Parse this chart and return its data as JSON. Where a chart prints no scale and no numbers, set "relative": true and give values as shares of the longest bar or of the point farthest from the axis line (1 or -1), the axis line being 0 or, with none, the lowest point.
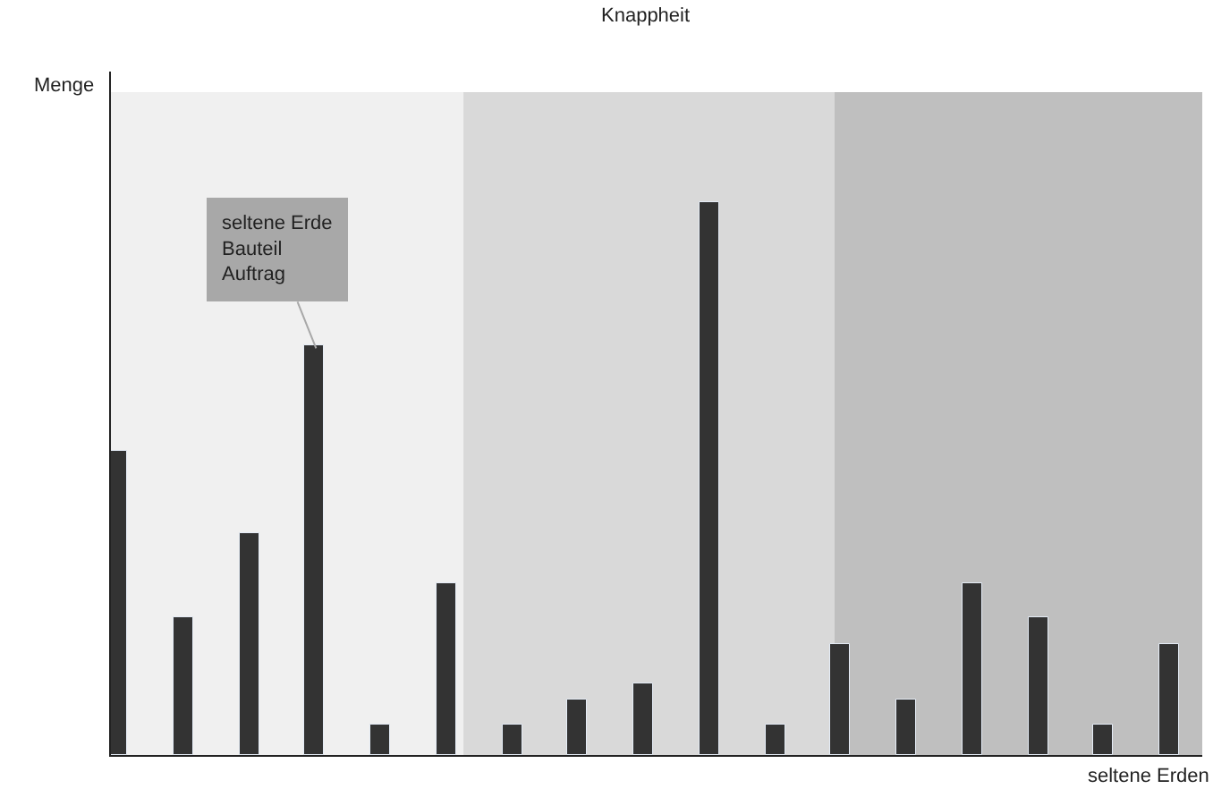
{
  "chart_data": {
    "type": "bar",
    "relative": true,
    "title": "Knappheit",
    "xlabel": "seltene Erden",
    "categories": [
      null,
      null,
      null,
      null,
      null,
      null,
      null,
      null,
      null,
      null,
      null,
      null,
      null,
      null,
      null,
      null,
      null
    ],
    "values": [
      0.55,
      0.25,
      0.4,
      0.74,
      0.055,
      0.31,
      0.055,
      0.1,
      0.13,
      1,
      0.055,
      0.2,
      0.1,
      0.31,
      0.25,
      0.055,
      0.2
    ],
    "color": "#333333",
    "annotations": [
      "seltene Erde\nBauteil\nAuftrag",
      "Menge"
    ],
    "grid": false,
    "legend": false
  }
}
